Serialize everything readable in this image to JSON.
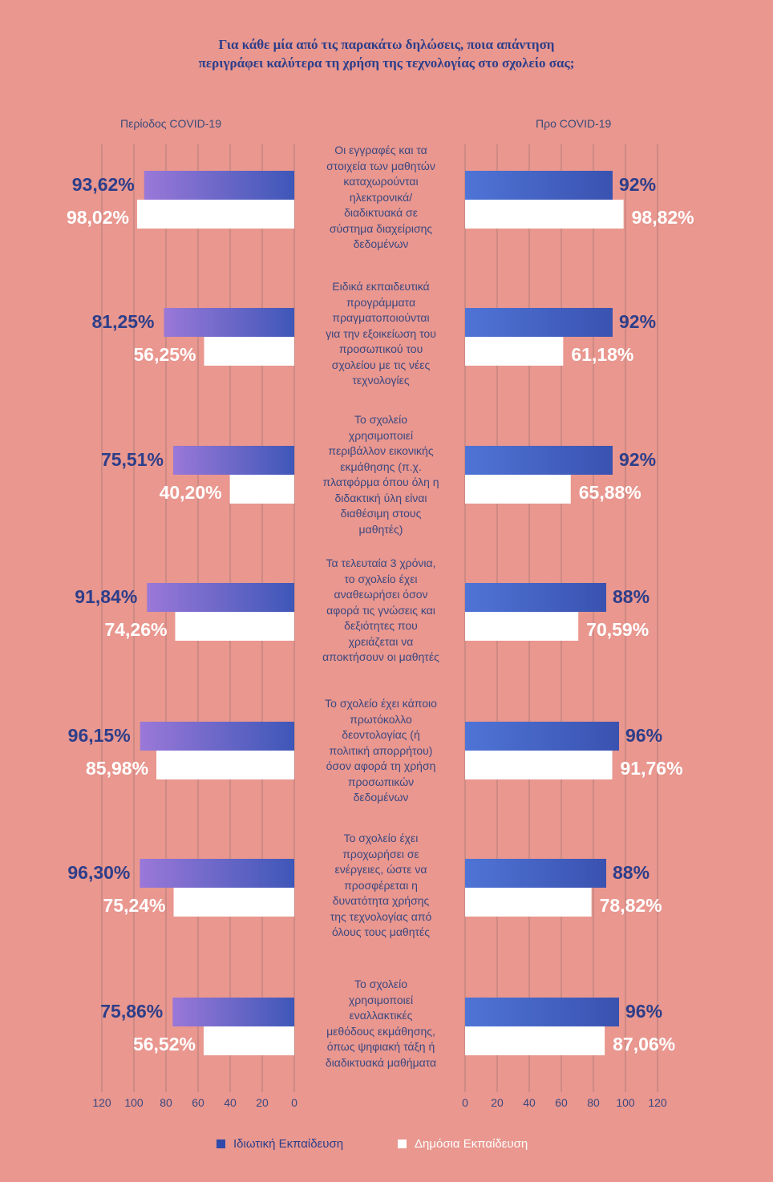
{
  "title_line1": "Για κάθε μία από τις παρακάτω δηλώσεις, ποια απάντηση",
  "title_line2": "περιγράφει καλύτερα τη χρήση της τεχνολογίας στο σχολείο σας;",
  "left_panel_label": "Περίοδος COVID-19",
  "right_panel_label": "Προ COVID-19",
  "legend": {
    "private": "Ιδιωτική Εκπαίδευση",
    "public": "Δημόσια Εκπαίδευση"
  },
  "colors": {
    "background": "#e9978f",
    "private": "#3e56b8",
    "public": "#ffffff",
    "private_label": "#2d3e8a",
    "public_label": "#ffffff"
  },
  "statements": [
    [
      "Οι εγγραφές και τα",
      "στοιχεία των μαθητών",
      "καταχωρούνται",
      "ηλεκτρονικά/",
      "διαδικτυακά σε",
      "σύστημα διαχείρισης",
      "δεδομένων"
    ],
    [
      "Ειδικά εκπαιδευτικά",
      "προγράμματα",
      "πραγματοποιούνται",
      "για την εξοικείωση του",
      "προσωπικού του",
      "σχολείου με τις νέες",
      "τεχνολογίες"
    ],
    [
      "Το σχολείο",
      "χρησιμοποιεί",
      "περιβάλλον εικονικής",
      "εκμάθησης (π.χ.",
      "πλατφόρμα όπου όλη η",
      "διδακτική ύλη είναι",
      "διαθέσιμη στους",
      "μαθητές)"
    ],
    [
      "Τα τελευταία 3 χρόνια,",
      "το σχολείο έχει",
      "αναθεωρήσει όσον",
      "αφορά τις γνώσεις και",
      "δεξιότητες που",
      "χρειάζεται να",
      "αποκτήσουν οι μαθητές"
    ],
    [
      "Το σχολείο έχει κάποιο",
      "πρωτόκολλο",
      "δεοντολογίας (ή",
      "πολιτική απορρήτου)",
      "όσον αφορά τη χρήση",
      "προσωπικών",
      "δεδομένων"
    ],
    [
      "Το σχολείο έχει",
      "προχωρήσει σε",
      "ενέργειες, ώστε να",
      "προσφέρεται η",
      "δυνατότητα χρήσης",
      "της τεχνολογίας από",
      "όλους τους μαθητές"
    ],
    [
      "Το σχολείο",
      "χρησιμοποιεί",
      "εναλλακτικές",
      "μεθόδους εκμάθησης,",
      "όπως ψηφιακή τάξη ή",
      "διαδικτυακά μαθήματα"
    ]
  ],
  "chart_data": {
    "type": "bar",
    "orientation": "horizontal",
    "layout": "back-to-back",
    "title": "Για κάθε μία από τις παρακάτω δηλώσεις, ποια απάντηση περιγράφει καλύτερα τη χρήση της τεχνολογίας στο σχολείο σας;",
    "panels": [
      {
        "name": "Περίοδος COVID-19",
        "direction": "right-to-left",
        "xlim": [
          0,
          120
        ],
        "xticks": [
          120,
          100,
          80,
          60,
          40,
          20,
          0
        ],
        "series": [
          {
            "name": "Ιδιωτική Εκπαίδευση",
            "values": [
              93.62,
              81.25,
              75.51,
              91.84,
              96.15,
              96.3,
              75.86
            ],
            "labels": [
              "93,62%",
              "81,25%",
              "75,51%",
              "91,84%",
              "96,15%",
              "96,30%",
              "75,86%"
            ]
          },
          {
            "name": "Δημόσια Εκπαίδευση",
            "values": [
              98.02,
              56.25,
              40.2,
              74.26,
              85.98,
              75.24,
              56.52
            ],
            "labels": [
              "98,02%",
              "56,25%",
              "40,20%",
              "74,26%",
              "85,98%",
              "75,24%",
              "56,52%"
            ]
          }
        ]
      },
      {
        "name": "Προ COVID-19",
        "direction": "left-to-right",
        "xlim": [
          0,
          120
        ],
        "xticks": [
          0,
          20,
          40,
          60,
          80,
          100,
          120
        ],
        "series": [
          {
            "name": "Ιδιωτική Εκπαίδευση",
            "values": [
              92,
              92,
              92,
              88,
              96,
              88,
              96
            ],
            "labels": [
              "92%",
              "92%",
              "92%",
              "88%",
              "96%",
              "88%",
              "96%"
            ]
          },
          {
            "name": "Δημόσια Εκπαίδευση",
            "values": [
              98.82,
              61.18,
              65.88,
              70.59,
              91.76,
              78.82,
              87.06
            ],
            "labels": [
              "98,82%",
              "61,18%",
              "65,88%",
              "70,59%",
              "91,76%",
              "78,82%",
              "87,06%"
            ]
          }
        ]
      }
    ],
    "grid": true,
    "legend": "bottom"
  }
}
